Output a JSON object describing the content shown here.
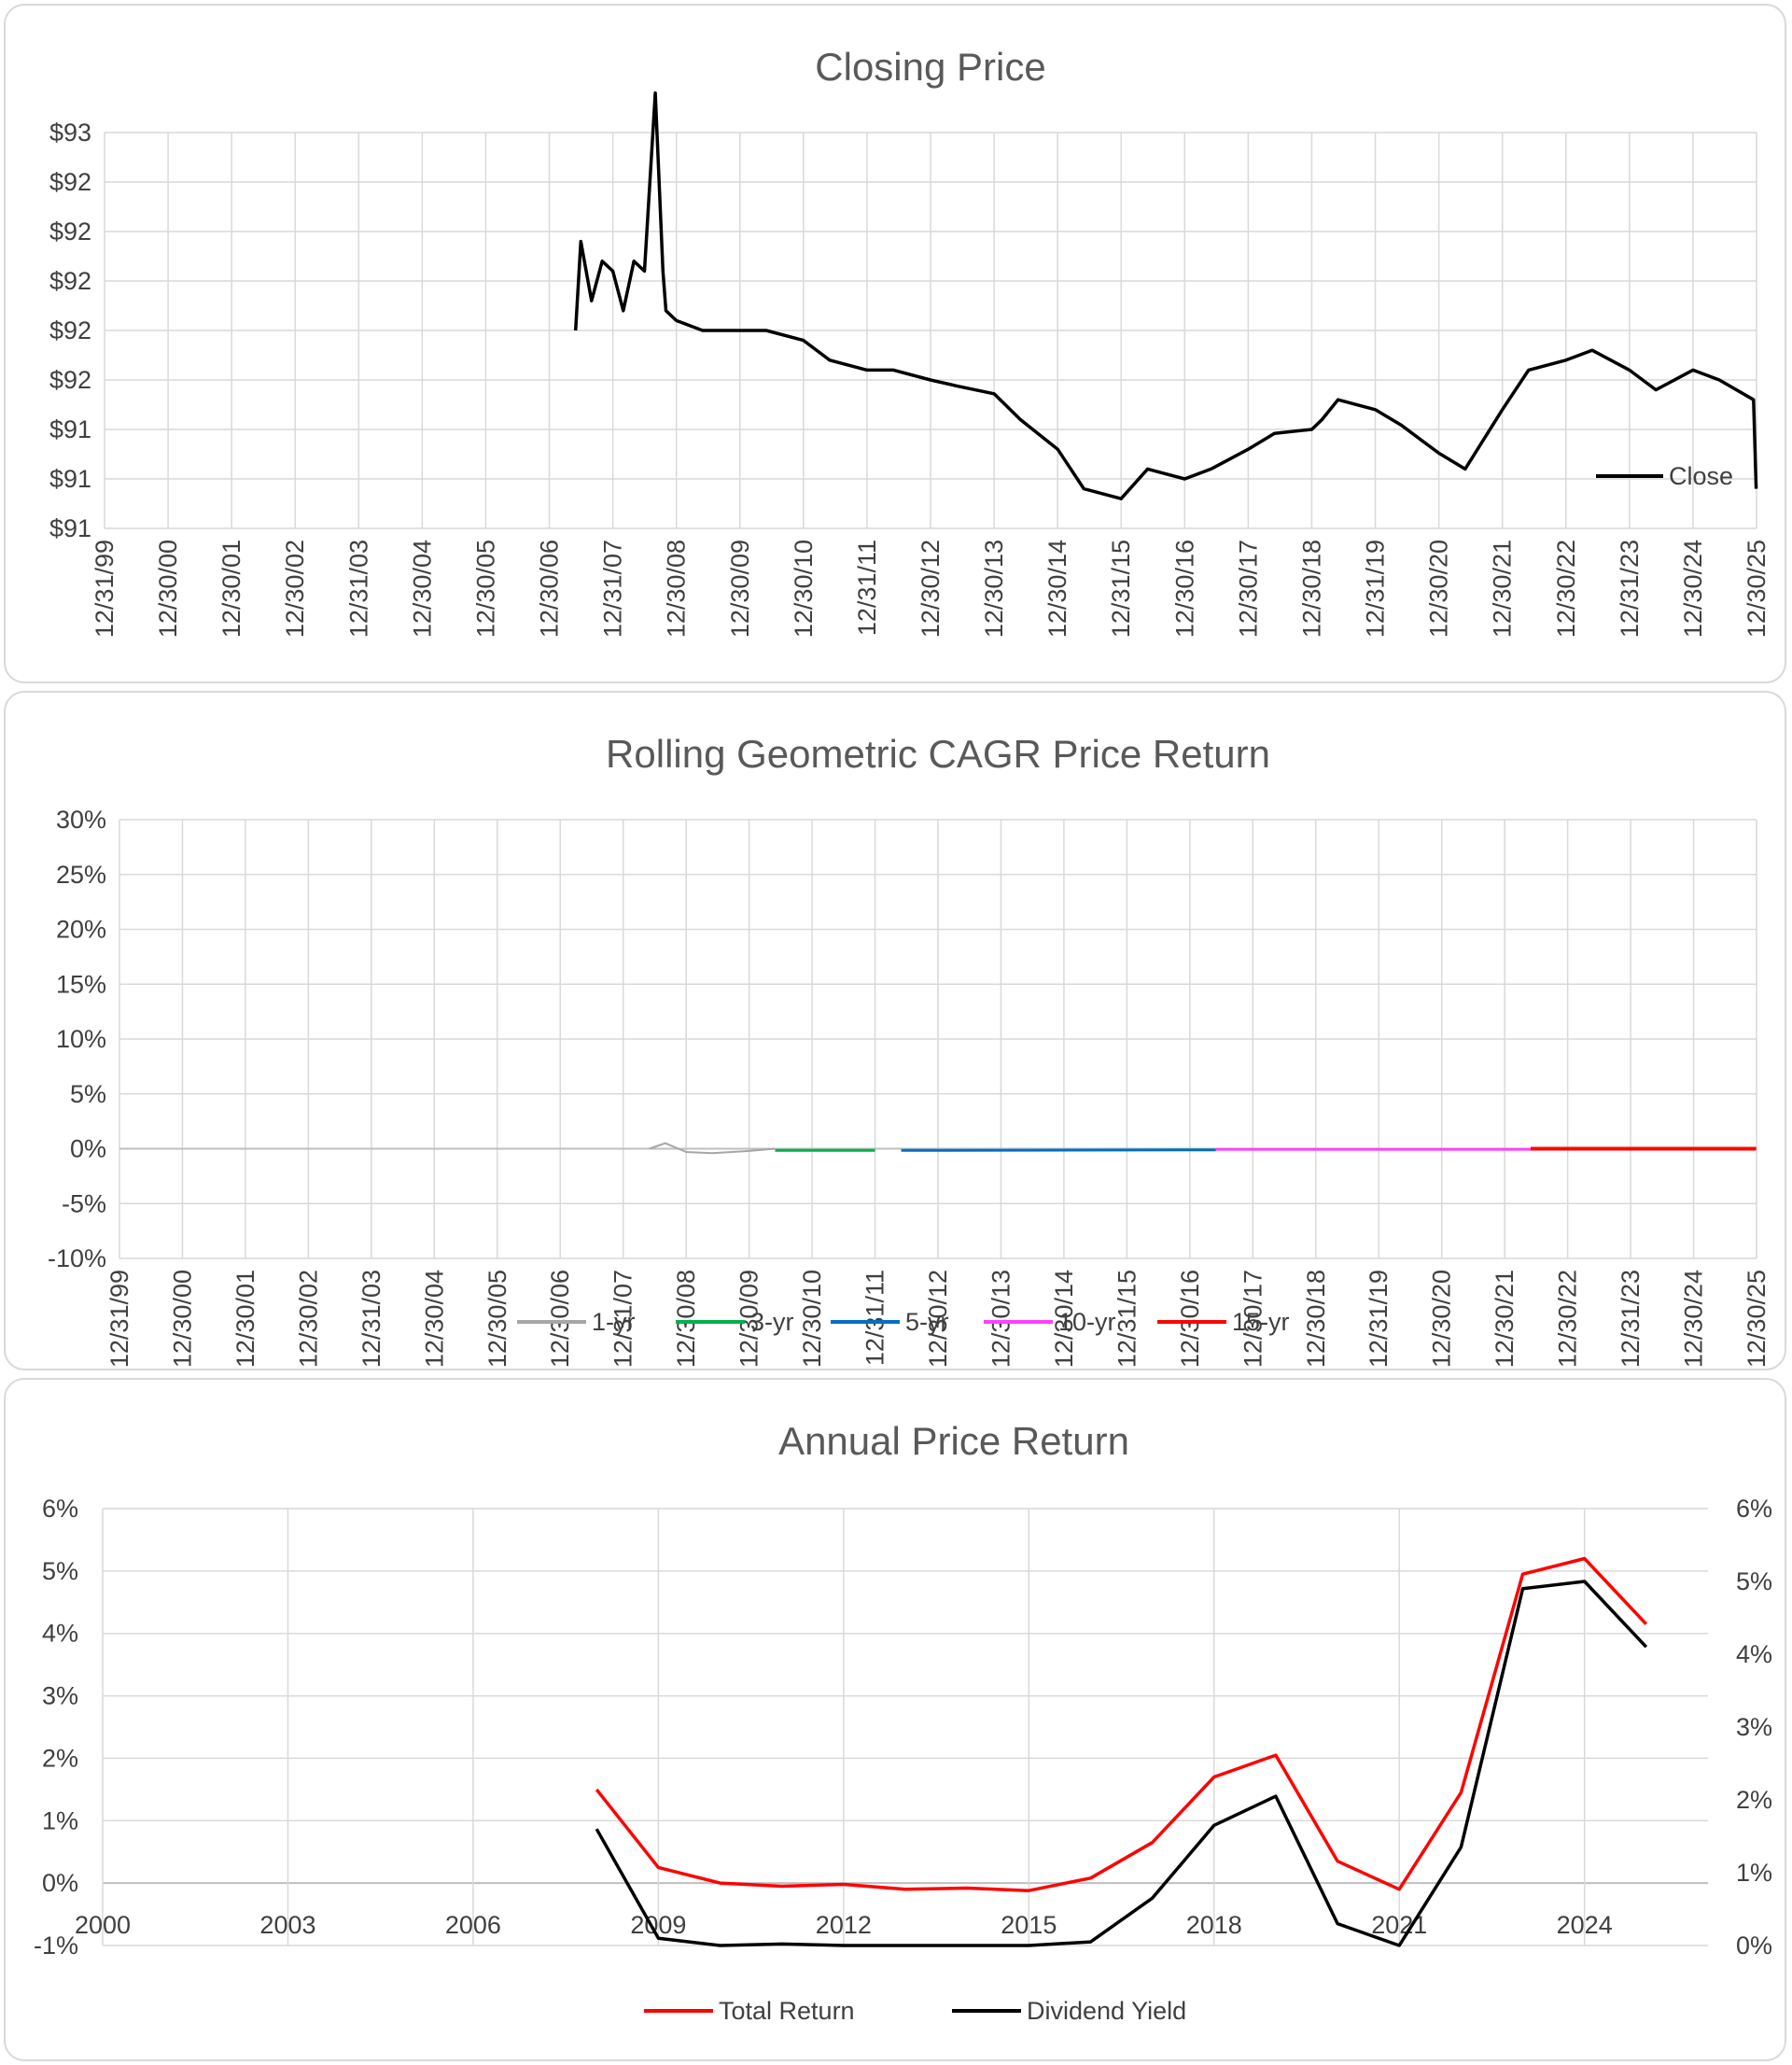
{
  "colors": {
    "close": "#000000",
    "r1": "#a6a6a6",
    "r3": "#00b050",
    "r5": "#0070c0",
    "r10": "#ff40ff",
    "r15": "#ff0000",
    "total_return": "#ff0000",
    "dividend_yield": "#000000",
    "grid": "#d9d9d9"
  },
  "chart_data": [
    {
      "type": "line",
      "title": "Closing Price",
      "ylim": [
        91,
        93
      ],
      "y_tick_labels": [
        "$93",
        "$92",
        "$92",
        "$92",
        "$92",
        "$92",
        "$91",
        "$91",
        "$91"
      ],
      "x_tick_labels": [
        "12/31/99",
        "12/30/00",
        "12/30/01",
        "12/30/02",
        "12/31/03",
        "12/30/04",
        "12/30/05",
        "12/30/06",
        "12/31/07",
        "12/30/08",
        "12/30/09",
        "12/30/10",
        "12/31/11",
        "12/30/12",
        "12/30/13",
        "12/30/14",
        "12/31/15",
        "12/30/16",
        "12/30/17",
        "12/30/18",
        "12/31/19",
        "12/30/20",
        "12/30/21",
        "12/30/22",
        "12/31/23",
        "12/30/24",
        "12/30/25"
      ],
      "grid": true,
      "legend": "bottom-right",
      "series": [
        {
          "name": "Close",
          "x": [
            "2007-06-01",
            "2007-07-01",
            "2007-09-01",
            "2007-11-01",
            "2008-01-01",
            "2008-03-01",
            "2008-05-01",
            "2008-07-01",
            "2008-09-01",
            "2008-10-15",
            "2008-11-01",
            "2009-01-01",
            "2009-06-01",
            "2010-01-01",
            "2010-06-01",
            "2011-01-01",
            "2011-06-01",
            "2012-01-01",
            "2012-06-01",
            "2013-01-01",
            "2013-06-01",
            "2014-01-01",
            "2014-06-01",
            "2015-01-01",
            "2015-06-01",
            "2016-01-01",
            "2016-06-01",
            "2017-01-01",
            "2017-06-01",
            "2018-01-01",
            "2018-06-01",
            "2019-01-01",
            "2019-03-01",
            "2019-06-01",
            "2020-01-01",
            "2020-06-01",
            "2021-01-01",
            "2021-06-01",
            "2022-01-01",
            "2022-06-01",
            "2023-01-01",
            "2023-06-01",
            "2024-01-01",
            "2024-06-01",
            "2025-01-01",
            "2025-06-01",
            "2025-12-15",
            "2025-12-30"
          ],
          "y": [
            92.0,
            92.45,
            92.15,
            92.35,
            92.3,
            92.1,
            92.35,
            92.3,
            93.2,
            92.3,
            92.1,
            92.05,
            92.0,
            92.0,
            92.0,
            91.95,
            91.85,
            91.8,
            91.8,
            91.75,
            91.72,
            91.68,
            91.55,
            91.4,
            91.2,
            91.15,
            91.3,
            91.25,
            91.3,
            91.4,
            91.48,
            91.5,
            91.55,
            91.65,
            91.6,
            91.52,
            91.38,
            91.3,
            91.6,
            91.8,
            91.85,
            91.9,
            91.8,
            91.7,
            91.8,
            91.75,
            91.65,
            91.2
          ]
        }
      ]
    },
    {
      "type": "line",
      "title": "Rolling Geometric CAGR Price Return",
      "ylim": [
        -10,
        30
      ],
      "y_tick_labels": [
        "30%",
        "25%",
        "20%",
        "15%",
        "10%",
        "5%",
        "0%",
        "-5%",
        "-10%"
      ],
      "x_tick_labels": [
        "12/31/99",
        "12/30/00",
        "12/30/01",
        "12/30/02",
        "12/31/03",
        "12/30/04",
        "12/30/05",
        "12/30/06",
        "12/31/07",
        "12/30/08",
        "12/30/09",
        "12/30/10",
        "12/31/11",
        "12/30/12",
        "12/30/13",
        "12/30/14",
        "12/31/15",
        "12/30/16",
        "12/30/17",
        "12/30/18",
        "12/31/19",
        "12/30/20",
        "12/30/21",
        "12/30/22",
        "12/31/23",
        "12/30/24",
        "12/30/25"
      ],
      "grid": true,
      "legend": "bottom",
      "series": [
        {
          "name": "1-yr",
          "x": [
            "2008-06-01",
            "2008-09-01",
            "2009-01-01",
            "2009-06-01",
            "2010-01-01",
            "2010-06-01"
          ],
          "y": [
            0.0,
            0.5,
            -0.3,
            -0.4,
            -0.2,
            0.0
          ]
        },
        {
          "name": "3-yr",
          "x": [
            "2010-06-01",
            "2012-01-01"
          ],
          "y": [
            -0.15,
            -0.15
          ]
        },
        {
          "name": "5-yr",
          "x": [
            "2012-06-01",
            "2017-06-01"
          ],
          "y": [
            -0.15,
            -0.1
          ]
        },
        {
          "name": "10-yr",
          "x": [
            "2017-06-01",
            "2022-06-01"
          ],
          "y": [
            -0.05,
            -0.05
          ]
        },
        {
          "name": "15-yr",
          "x": [
            "2022-06-01",
            "2025-12-30"
          ],
          "y": [
            0.0,
            0.0
          ]
        }
      ]
    },
    {
      "type": "line",
      "title": "Annual Price Return",
      "xlim": [
        2000,
        2026
      ],
      "x_tick_labels": [
        "2000",
        "2003",
        "2006",
        "2009",
        "2012",
        "2015",
        "2018",
        "2021",
        "2024"
      ],
      "ylim": [
        -1,
        6
      ],
      "y_tick_labels": [
        "6%",
        "5%",
        "4%",
        "3%",
        "2%",
        "1%",
        "0%",
        "-1%"
      ],
      "y2lim": [
        0,
        6
      ],
      "y2_tick_labels": [
        "6%",
        "5%",
        "4%",
        "3%",
        "2%",
        "1%",
        "0%"
      ],
      "grid": true,
      "legend": "bottom",
      "series": [
        {
          "name": "Total Return",
          "axis": "left",
          "x": [
            2008,
            2009,
            2010,
            2011,
            2012,
            2013,
            2014,
            2015,
            2016,
            2017,
            2018,
            2019,
            2020,
            2021,
            2022,
            2023,
            2024,
            2025
          ],
          "y": [
            1.5,
            0.25,
            0.0,
            -0.05,
            -0.02,
            -0.1,
            -0.08,
            -0.12,
            0.08,
            0.65,
            1.7,
            2.05,
            0.35,
            -0.1,
            1.45,
            4.95,
            5.2,
            4.15
          ]
        },
        {
          "name": "Dividend Yield",
          "axis": "right",
          "x": [
            2008,
            2009,
            2010,
            2011,
            2012,
            2013,
            2014,
            2015,
            2016,
            2017,
            2018,
            2019,
            2020,
            2021,
            2022,
            2023,
            2024,
            2025
          ],
          "y": [
            1.6,
            0.1,
            0.0,
            0.02,
            0.0,
            0.0,
            0.0,
            0.0,
            0.05,
            0.65,
            1.65,
            2.05,
            0.3,
            0.0,
            1.35,
            4.9,
            5.0,
            4.1
          ]
        }
      ]
    }
  ]
}
